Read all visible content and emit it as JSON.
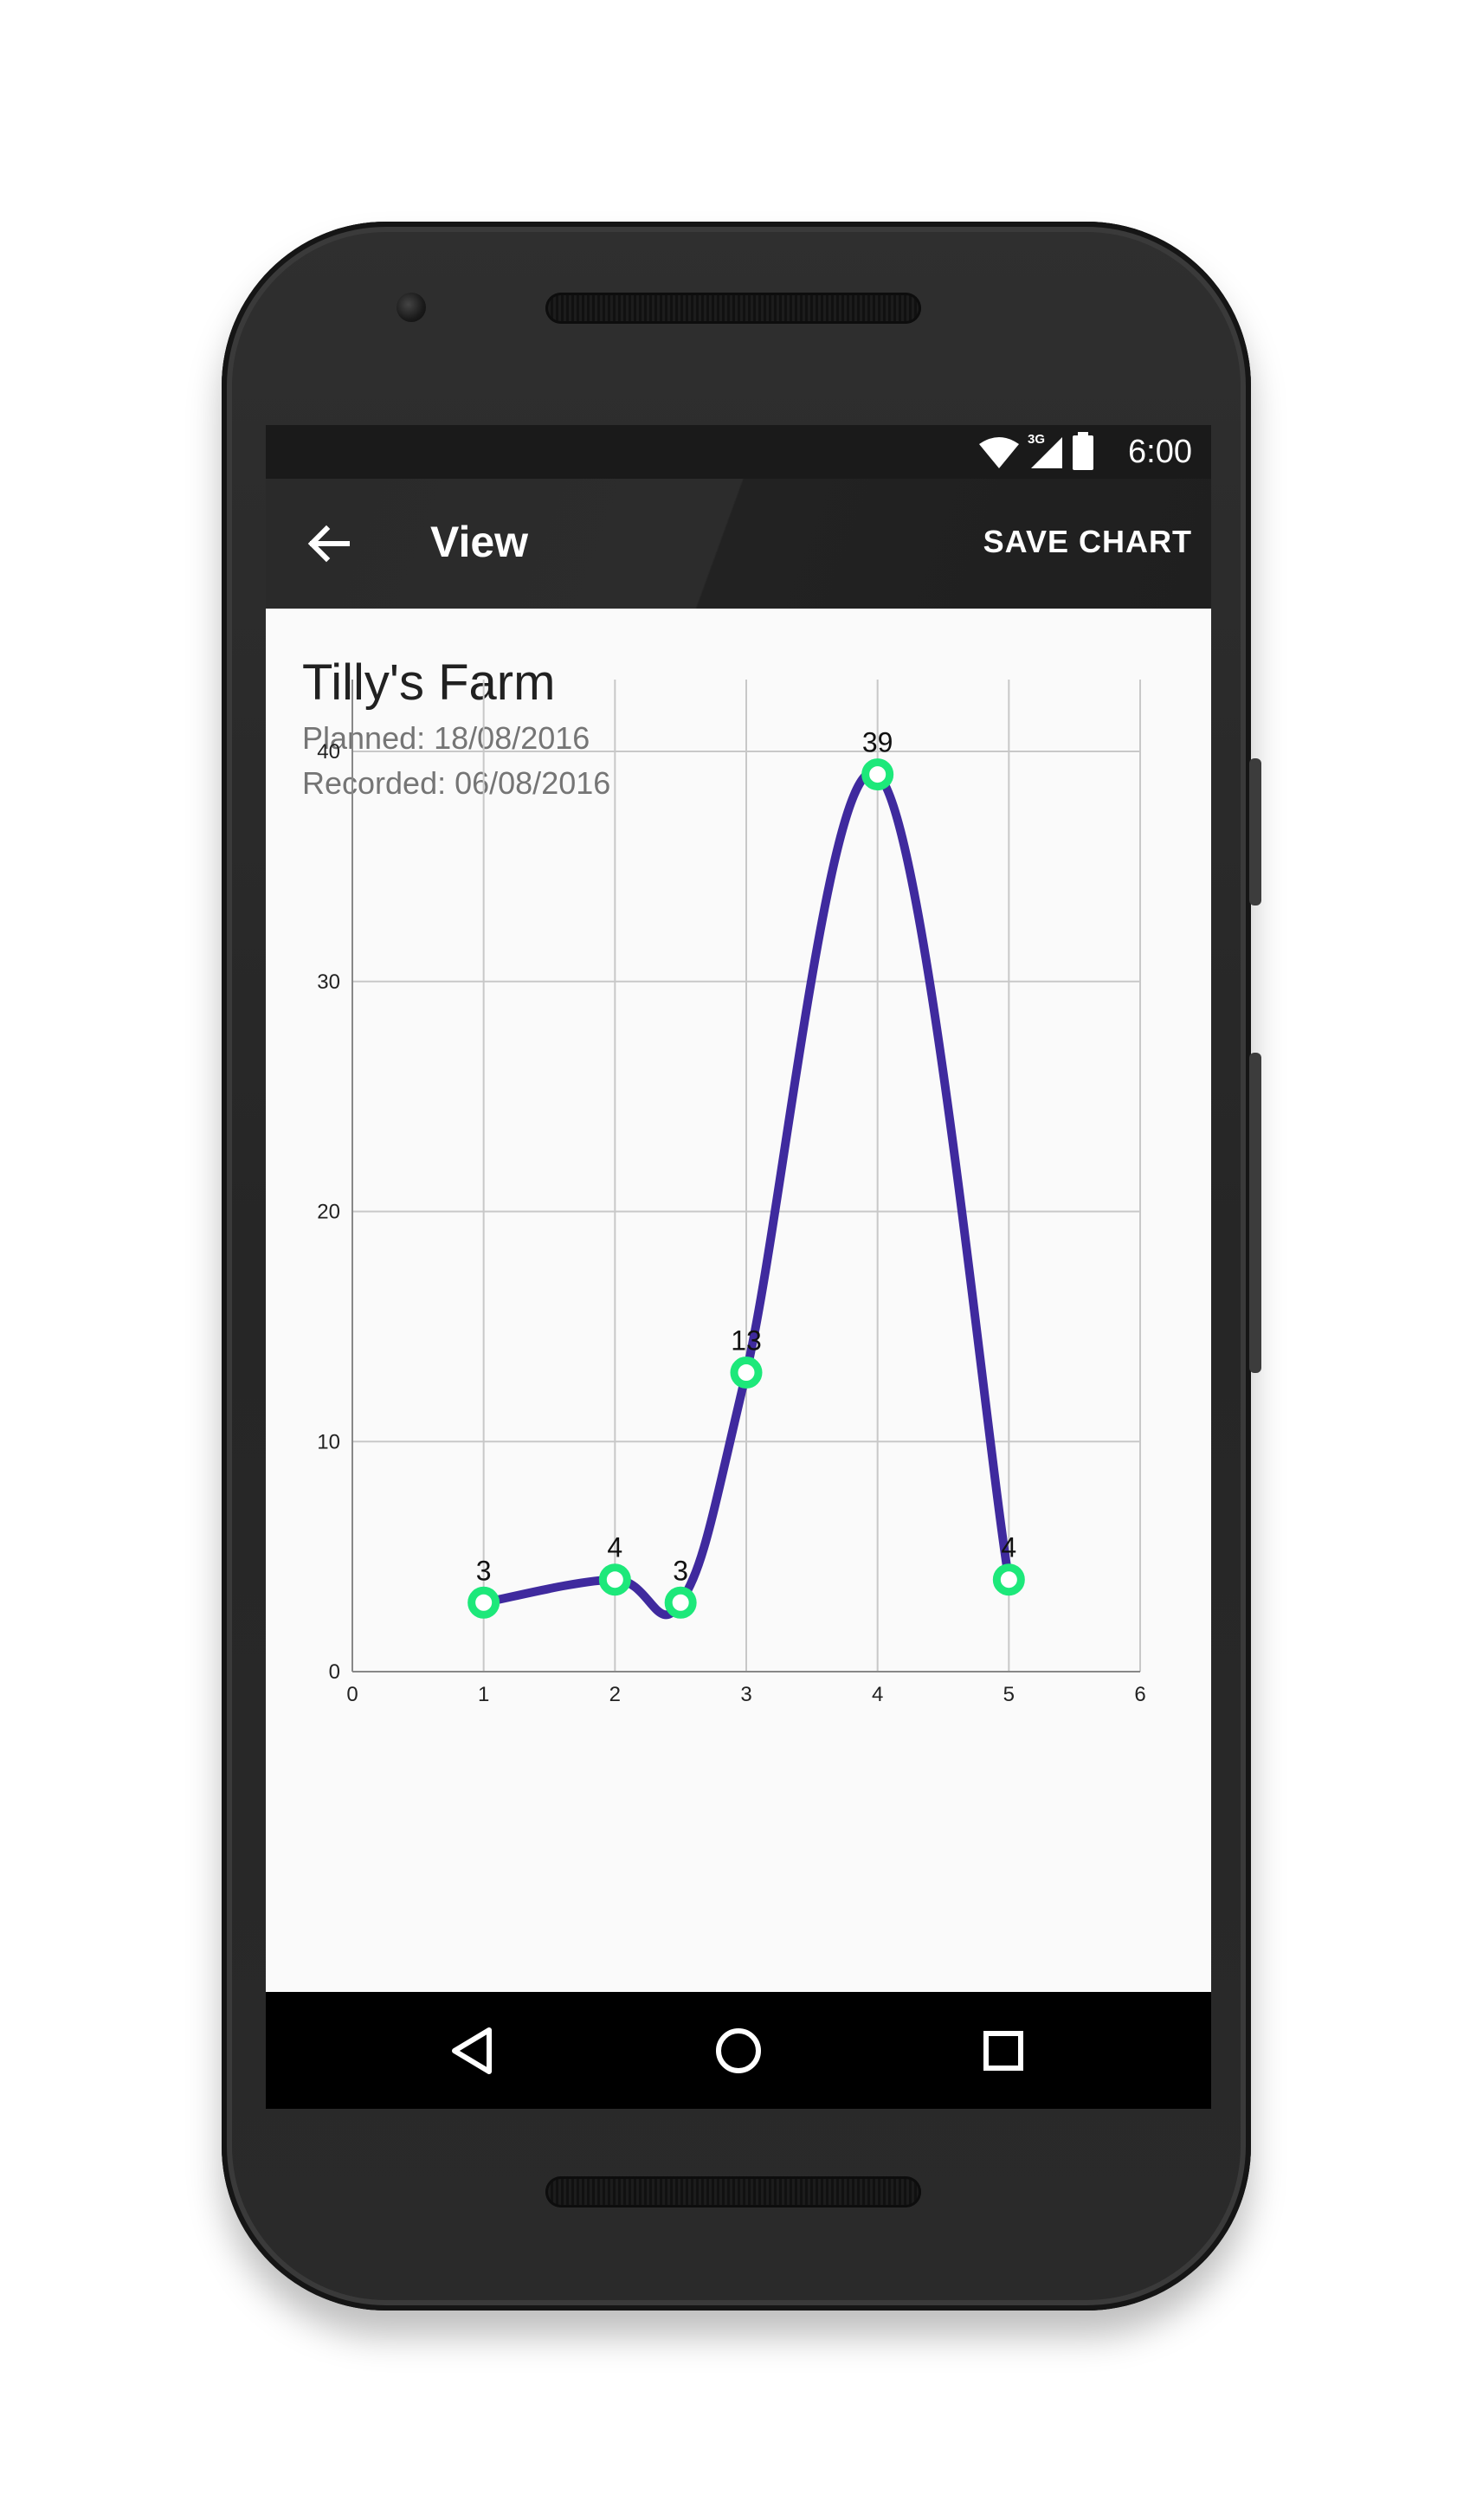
{
  "status_bar": {
    "time": "6:00",
    "network": "3G",
    "icons": [
      "wifi-icon",
      "cell-signal-icon",
      "battery-icon"
    ]
  },
  "app_bar": {
    "back_icon": "arrow-back-icon",
    "title": "View",
    "action_label": "SAVE CHART"
  },
  "record": {
    "title": "Tilly's Farm",
    "planned": "Planned: 18/08/2016",
    "recorded": "Recorded: 06/08/2016"
  },
  "chart_data": {
    "type": "line",
    "title": "",
    "xlabel": "",
    "ylabel": "",
    "xlim": [
      0,
      6
    ],
    "ylim": [
      0,
      40
    ],
    "x_ticks": [
      "0",
      "1",
      "2",
      "3",
      "4",
      "5",
      "6"
    ],
    "y_ticks": [
      "0",
      "10",
      "20",
      "30",
      "40"
    ],
    "grid": true,
    "smooth": true,
    "series": [
      {
        "x": [
          1,
          2,
          2.5,
          3,
          4,
          5
        ],
        "values": [
          3,
          4,
          3,
          13,
          39,
          4
        ],
        "data_labels": [
          "3",
          "4",
          "3",
          "13",
          "39",
          "4"
        ],
        "line_color": "#3f2a9e",
        "marker_color": "#1de87a"
      }
    ]
  },
  "nav_bar": {
    "icons": [
      "back-triangle-icon",
      "home-circle-icon",
      "recents-square-icon"
    ]
  }
}
